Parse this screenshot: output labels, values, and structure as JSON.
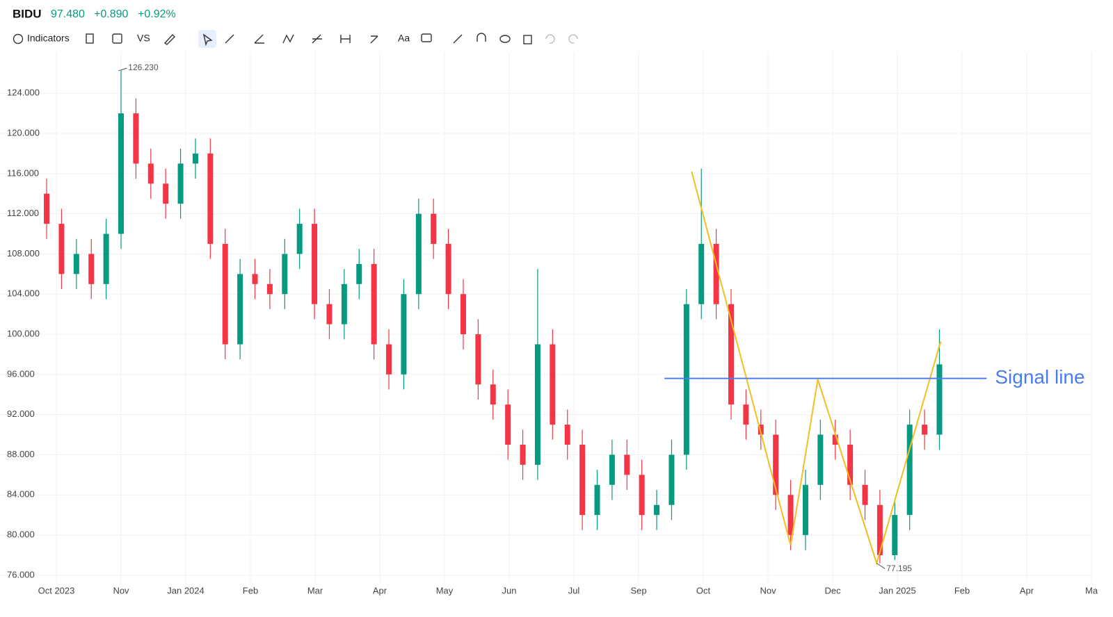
{
  "header": {
    "symbol": "BIDU",
    "price": "97.480",
    "change": "+0.890",
    "change_pct": "+0.92%"
  },
  "toolbar": {
    "indicators": "Indicators",
    "compare": "VS",
    "text": "Aa"
  },
  "chart_data": {
    "type": "candlestick",
    "x": [
      -0.15,
      0.08,
      0.31,
      0.54,
      0.77,
      1.0,
      1.23,
      1.46,
      1.69,
      1.92,
      2.15,
      2.38,
      2.61,
      2.84,
      3.07,
      3.3,
      3.53,
      3.76,
      3.99,
      4.22,
      4.45,
      4.68,
      4.91,
      5.14,
      5.37,
      5.6,
      5.83,
      6.06,
      6.29,
      6.52,
      6.75,
      6.98,
      7.21,
      7.44,
      7.67,
      7.9,
      8.13,
      8.36,
      8.59,
      8.82,
      9.05,
      9.28,
      9.51,
      9.74,
      9.97,
      10.2,
      10.43,
      10.66,
      10.89,
      11.12,
      11.35,
      11.58,
      11.81,
      12.04,
      12.27,
      12.5,
      12.73,
      12.96,
      13.19,
      13.42,
      13.65
    ],
    "open": [
      114,
      111,
      106,
      108,
      105,
      110,
      122,
      117,
      115,
      113,
      117,
      118,
      109,
      99,
      106,
      105,
      104,
      108,
      111,
      103,
      101,
      105,
      107,
      99,
      96,
      104,
      112,
      109,
      104,
      100,
      95,
      93,
      89,
      87,
      99,
      91,
      89,
      82,
      85,
      88,
      86,
      82,
      83,
      88,
      103,
      109,
      103,
      93,
      91,
      90,
      84,
      80,
      85,
      90,
      89,
      85,
      83,
      78,
      82,
      91,
      90
    ],
    "high": [
      115.5,
      112.5,
      109.5,
      109.5,
      111.5,
      126.23,
      123.5,
      118.5,
      116.5,
      118.5,
      119.5,
      119.5,
      110.5,
      107.5,
      107.5,
      106.5,
      109.5,
      112.5,
      112.5,
      104.5,
      106.5,
      108.5,
      108.5,
      100.5,
      105.5,
      113.5,
      113.5,
      110.5,
      105.5,
      101.5,
      96.5,
      94.5,
      90.5,
      106.5,
      100.5,
      92.5,
      90.5,
      86.5,
      89.5,
      89.5,
      87.5,
      84.5,
      89.5,
      104.5,
      116.5,
      110.5,
      104.5,
      94.5,
      92.5,
      91.5,
      85.5,
      86.5,
      91.5,
      91.5,
      90.5,
      86.5,
      84.5,
      83.5,
      92.5,
      92.5,
      100.5
    ],
    "low": [
      109.5,
      104.5,
      104.5,
      103.5,
      103.5,
      108.5,
      115.5,
      113.5,
      111.5,
      111.5,
      115.5,
      107.5,
      97.5,
      97.5,
      103.5,
      102.5,
      102.5,
      106.5,
      101.5,
      99.5,
      99.5,
      103.5,
      97.5,
      94.5,
      94.5,
      102.5,
      107.5,
      102.5,
      98.5,
      93.5,
      91.5,
      87.5,
      85.5,
      85.5,
      89.5,
      87.5,
      80.5,
      80.5,
      83.5,
      84.5,
      80.5,
      80.5,
      81.5,
      86.5,
      101.5,
      101.5,
      91.5,
      89.5,
      88.5,
      82.5,
      78.5,
      78.5,
      83.5,
      87.5,
      83.5,
      81.5,
      77.195,
      77.5,
      80.5,
      88.5,
      88.5
    ],
    "close": [
      111,
      106,
      108,
      105,
      110,
      122,
      117,
      115,
      113,
      117,
      118,
      109,
      99,
      106,
      105,
      104,
      108,
      111,
      103,
      101,
      105,
      107,
      99,
      96,
      104,
      112,
      109,
      104,
      100,
      95,
      93,
      89,
      87,
      99,
      91,
      89,
      82,
      85,
      88,
      86,
      82,
      83,
      88,
      103,
      109,
      103,
      93,
      91,
      90,
      84,
      80,
      85,
      90,
      89,
      85,
      83,
      78,
      82,
      91,
      90,
      97
    ],
    "up_color": "#089981",
    "down_color": "#f23645",
    "xlim": [
      -0.871,
      15.989
    ],
    "xticks": [
      {
        "value": 0,
        "label": "Oct 2023"
      },
      {
        "value": 1,
        "label": "Nov"
      },
      {
        "value": 2,
        "label": "Jan 2024"
      },
      {
        "value": 3,
        "label": "Feb"
      },
      {
        "value": 4,
        "label": "Mar"
      },
      {
        "value": 5,
        "label": "Apr"
      },
      {
        "value": 6,
        "label": "May"
      },
      {
        "value": 7,
        "label": "Jun"
      },
      {
        "value": 8,
        "label": "Jul"
      },
      {
        "value": 9,
        "label": "Sep"
      },
      {
        "value": 10,
        "label": "Oct"
      },
      {
        "value": 11,
        "label": "Nov"
      },
      {
        "value": 12,
        "label": "Dec"
      },
      {
        "value": 13,
        "label": "Jan 2025"
      },
      {
        "value": 14,
        "label": "Feb"
      },
      {
        "value": 15,
        "label": "Apr"
      },
      {
        "value": 16,
        "label": "Ma"
      }
    ],
    "ylim": [
      75.3,
      128.1
    ],
    "yticks": [
      {
        "value": 76,
        "label": "76.000"
      },
      {
        "value": 80,
        "label": "80.000"
      },
      {
        "value": 84,
        "label": "84.000"
      },
      {
        "value": 88,
        "label": "88.000"
      },
      {
        "value": 92,
        "label": "92.000"
      },
      {
        "value": 96,
        "label": "96.000"
      },
      {
        "value": 100,
        "label": "100.000"
      },
      {
        "value": 104,
        "label": "104.000"
      },
      {
        "value": 108,
        "label": "108.000"
      },
      {
        "value": 112,
        "label": "112.000"
      },
      {
        "value": 116,
        "label": "116.000"
      },
      {
        "value": 120,
        "label": "120.000"
      },
      {
        "value": 124,
        "label": "124.000"
      }
    ],
    "grid": true,
    "annotations": [
      {
        "x": 0.96,
        "value": 126.23,
        "label": "126.230"
      },
      {
        "x": 12.68,
        "value": 77.195,
        "label": "77.195"
      }
    ],
    "signal_line": {
      "text": "Signal line",
      "value": 95.6,
      "x": [
        9.4,
        14.38
      ],
      "color": "#4a7cf0"
    },
    "zigzag": {
      "x": [
        9.82,
        11.35,
        11.77,
        12.68,
        13.67
      ],
      "values": [
        116.2,
        79,
        95.5,
        77.2,
        99.3
      ],
      "color": "#f5bd1f"
    }
  }
}
